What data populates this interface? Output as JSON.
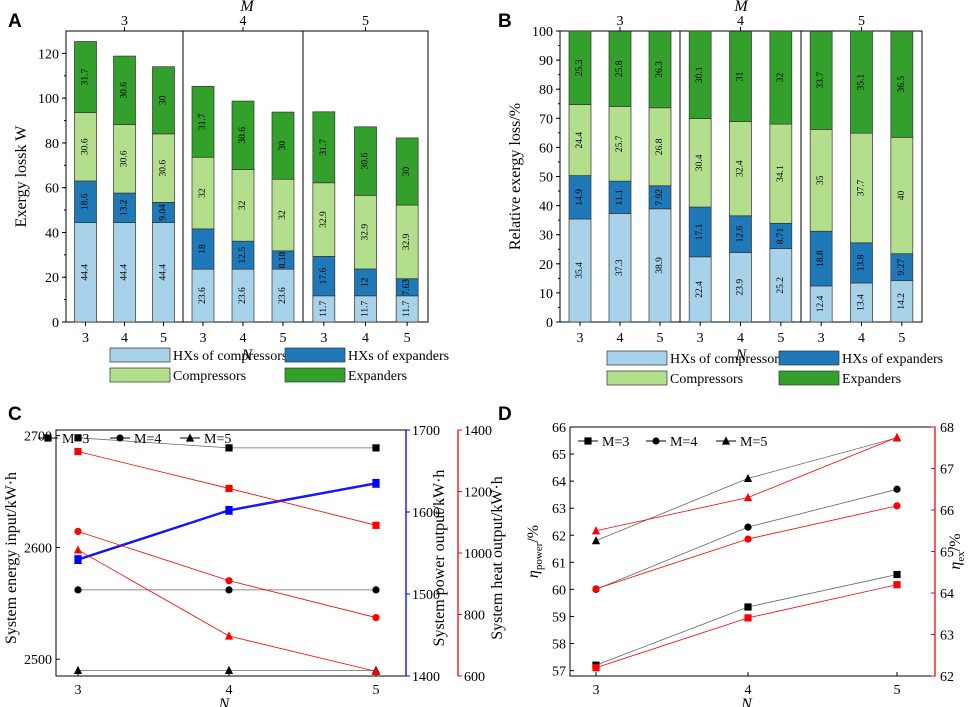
{
  "colors": {
    "hx_comp": "#a8d1ea",
    "hx_exp": "#1f78b8",
    "comp": "#b3de8c",
    "exp": "#33a02c",
    "red": "#ff0000",
    "blue": "#0000ff",
    "gray": "#777777"
  },
  "chart_data": [
    {
      "panel": "A",
      "type": "bar",
      "stacked": true,
      "top_title": "M",
      "group_labels": [
        "3",
        "4",
        "5"
      ],
      "categories": [
        "3",
        "4",
        "5",
        "3",
        "4",
        "5",
        "3",
        "4",
        "5"
      ],
      "xlabel": "N",
      "ylabel": "Exergy lossk W",
      "ylim": [
        0,
        130
      ],
      "yticks": [
        0,
        20,
        40,
        60,
        80,
        100,
        120
      ],
      "series": [
        {
          "name": "HXs of compressors",
          "color_key": "hx_comp",
          "values": [
            44.4,
            44.4,
            44.4,
            23.6,
            23.6,
            23.6,
            11.7,
            11.7,
            11.7
          ],
          "labels": [
            "44.4",
            "44.4",
            "44.4",
            "23.6",
            "23.6",
            "23.6",
            "11.7",
            "11.7",
            "11.7"
          ]
        },
        {
          "name": "HXs of expanders",
          "color_key": "hx_exp",
          "values": [
            18.6,
            13.2,
            9.04,
            18,
            12.5,
            8.18,
            17.6,
            12,
            7.63
          ],
          "labels": [
            "18.6",
            "13.2",
            "9.04",
            "18",
            "12.5",
            "8.18",
            "17.6",
            "12",
            "7.63"
          ]
        },
        {
          "name": "Compressors",
          "color_key": "comp",
          "values": [
            30.6,
            30.6,
            30.6,
            32,
            32,
            32,
            32.9,
            32.9,
            32.9
          ],
          "labels": [
            "30.6",
            "30.6",
            "30.6",
            "32",
            "32",
            "32",
            "32.9",
            "32.9",
            "32.9"
          ]
        },
        {
          "name": "Expanders",
          "color_key": "exp",
          "values": [
            31.7,
            30.6,
            30,
            31.7,
            30.6,
            30,
            31.7,
            30.6,
            30
          ],
          "labels": [
            "31.7",
            "30.6",
            "30",
            "31.7",
            "30.6",
            "30",
            "31.7",
            "30.6",
            "30"
          ]
        }
      ]
    },
    {
      "panel": "B",
      "type": "bar",
      "stacked": true,
      "top_title": "M",
      "group_labels": [
        "3",
        "4",
        "5"
      ],
      "categories": [
        "3",
        "4",
        "5",
        "3",
        "4",
        "5",
        "3",
        "4",
        "5"
      ],
      "xlabel": "N",
      "ylabel": "Relative exergy loss/%",
      "ylim": [
        0,
        100
      ],
      "yticks": [
        0,
        10,
        20,
        30,
        40,
        50,
        60,
        70,
        80,
        90,
        100
      ],
      "series": [
        {
          "name": "HXs of compressors",
          "color_key": "hx_comp",
          "values": [
            35.4,
            37.3,
            38.9,
            22.4,
            23.9,
            25.2,
            12.4,
            13.4,
            14.2
          ],
          "labels": [
            "35.4",
            "37.3",
            "38.9",
            "22.4",
            "23.9",
            "25.2",
            "12.4",
            "13.4",
            "14.2"
          ]
        },
        {
          "name": "HXs of expanders",
          "color_key": "hx_exp",
          "values": [
            14.9,
            11.1,
            7.92,
            17.1,
            12.6,
            8.71,
            18.8,
            13.8,
            9.27
          ],
          "labels": [
            "14.9",
            "11.1",
            "7.92",
            "17.1",
            "12.6",
            "8.71",
            "18.8",
            "13.8",
            "9.27"
          ]
        },
        {
          "name": "Compressors",
          "color_key": "comp",
          "values": [
            24.4,
            25.7,
            26.8,
            30.4,
            32.4,
            34.1,
            35,
            37.7,
            40
          ],
          "labels": [
            "24.4",
            "25.7",
            "26.8",
            "30.4",
            "32.4",
            "34.1",
            "35",
            "37.7",
            "40"
          ]
        },
        {
          "name": "Expanders",
          "color_key": "exp",
          "values": [
            25.3,
            25.8,
            26.3,
            30.1,
            31,
            32,
            33.7,
            35.1,
            36.5
          ],
          "labels": [
            "25.3",
            "25.8",
            "26.3",
            "30.1",
            "31",
            "32",
            "33.7",
            "35.1",
            "36.5"
          ]
        }
      ]
    },
    {
      "panel": "C",
      "type": "line",
      "x": [
        3,
        4,
        5
      ],
      "xlabel": "N",
      "xticks": [
        "3",
        "4",
        "5"
      ],
      "axes": {
        "left": {
          "label": "System energy input/kW·h",
          "ylim": [
            2485,
            2705
          ],
          "ticks": [
            2500,
            2600,
            2700
          ]
        },
        "right1": {
          "label": "System power output/kW·h",
          "ylim": [
            1400,
            1700
          ],
          "ticks": [
            1400,
            1500,
            1600,
            1700
          ]
        },
        "right2": {
          "label": "System heat output/kW·h",
          "ylim": [
            600,
            1400
          ],
          "ticks": [
            600,
            800,
            1000,
            1200,
            1400
          ]
        }
      },
      "series": [
        {
          "name": "M=3",
          "axis": "left",
          "marker": "square",
          "values": [
            2698,
            2689,
            2689
          ]
        },
        {
          "name": "M=4",
          "axis": "left",
          "marker": "circle",
          "values": [
            2562,
            2562,
            2562
          ]
        },
        {
          "name": "M=5",
          "axis": "left",
          "marker": "triangle",
          "values": [
            2490,
            2490,
            2490
          ]
        },
        {
          "name": "power M=3",
          "axis": "right1",
          "marker": "square",
          "values": [
            1543,
            1603,
            1636
          ]
        },
        {
          "name": "power M=4",
          "axis": "right1",
          "marker": "circle",
          "values": [
            1542,
            1602,
            1635
          ]
        },
        {
          "name": "power M=5",
          "axis": "right1",
          "marker": "triangle",
          "values": [
            1541,
            1601,
            1634
          ]
        },
        {
          "name": "heat M=3",
          "axis": "right2",
          "marker": "square",
          "values": [
            1330,
            1210,
            1090
          ]
        },
        {
          "name": "heat M=4",
          "axis": "right2",
          "marker": "circle",
          "values": [
            1070,
            910,
            790
          ]
        },
        {
          "name": "heat M=5",
          "axis": "right2",
          "marker": "triangle",
          "values": [
            1010,
            730,
            615
          ]
        }
      ],
      "legend": [
        "M=3",
        "M=4",
        "M=5"
      ]
    },
    {
      "panel": "D",
      "type": "line",
      "x": [
        3,
        4,
        5
      ],
      "xlabel": "N",
      "xticks": [
        "3",
        "4",
        "5"
      ],
      "axes": {
        "left": {
          "label_main": "η",
          "label_sub": "power",
          "label_tail": "/%",
          "ylim": [
            56.8,
            66
          ],
          "ticks": [
            57,
            58,
            59,
            60,
            61,
            62,
            63,
            64,
            65,
            66
          ]
        },
        "right": {
          "label_main": "η",
          "label_sub": "ex",
          "label_tail": "/%",
          "ylim": [
            62,
            68
          ],
          "ticks": [
            62,
            63,
            64,
            65,
            66,
            67,
            68
          ]
        }
      },
      "series": [
        {
          "name": "M=3",
          "axis": "left",
          "marker": "square",
          "values": [
            57.2,
            59.35,
            60.55
          ]
        },
        {
          "name": "M=4",
          "axis": "left",
          "marker": "circle",
          "values": [
            60.0,
            62.3,
            63.7
          ]
        },
        {
          "name": "M=5",
          "axis": "left",
          "marker": "triangle",
          "values": [
            61.8,
            64.1,
            65.6
          ]
        },
        {
          "name": "ex M=3",
          "axis": "right",
          "marker": "square",
          "values": [
            62.2,
            63.4,
            64.2
          ]
        },
        {
          "name": "ex M=4",
          "axis": "right",
          "marker": "circle",
          "values": [
            64.1,
            65.3,
            66.1
          ]
        },
        {
          "name": "ex M=5",
          "axis": "right",
          "marker": "triangle",
          "values": [
            65.5,
            66.3,
            67.75
          ]
        }
      ],
      "legend": [
        "M=3",
        "M=4",
        "M=5"
      ]
    }
  ],
  "panels": {
    "a": {
      "letter": "A"
    },
    "b": {
      "letter": "B"
    },
    "c": {
      "letter": "C"
    },
    "d": {
      "letter": "D"
    }
  },
  "bar_legend": [
    "HXs of compressors",
    "HXs of expanders",
    "Compressors",
    "Expanders"
  ]
}
